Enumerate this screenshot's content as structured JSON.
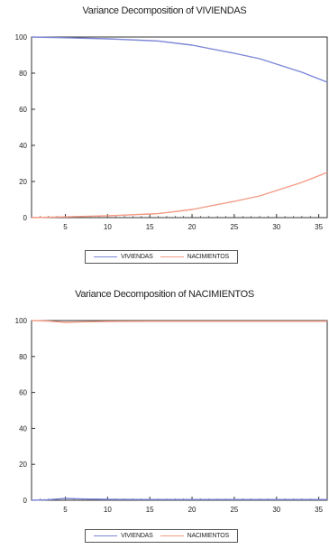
{
  "chart_data": [
    {
      "type": "line",
      "title": "Variance Decomposition of VIVIENDAS",
      "xlim": [
        1,
        36
      ],
      "ylim": [
        0,
        100
      ],
      "x_ticks": [
        5,
        10,
        15,
        20,
        25,
        30,
        35
      ],
      "y_ticks": [
        0,
        20,
        40,
        60,
        80,
        100
      ],
      "legend_position": "bottom",
      "series": [
        {
          "name": "VIVIENDAS",
          "color": "#7b86d6",
          "x": [
            1,
            5,
            10,
            15,
            16,
            20,
            25,
            28,
            30,
            33,
            36
          ],
          "values": [
            100,
            99.6,
            99,
            98,
            97.8,
            95.5,
            91,
            88,
            85,
            80.5,
            75
          ]
        },
        {
          "name": "NACIMIENTOS",
          "color": "#f39a84",
          "x": [
            1,
            5,
            10,
            15,
            16,
            20,
            25,
            28,
            30,
            33,
            36
          ],
          "values": [
            0,
            0.4,
            1,
            2,
            2.2,
            4.5,
            9,
            12,
            15,
            19.5,
            25
          ]
        }
      ]
    },
    {
      "type": "line",
      "title": "Variance Decomposition of NACIMIENTOS",
      "xlim": [
        1,
        36
      ],
      "ylim": [
        0,
        100
      ],
      "x_ticks": [
        5,
        10,
        15,
        20,
        25,
        30,
        35
      ],
      "y_ticks": [
        0,
        20,
        40,
        60,
        80,
        100
      ],
      "legend_position": "bottom",
      "series": [
        {
          "name": "VIVIENDAS",
          "color": "#7b86d6",
          "x": [
            1,
            3,
            5,
            7,
            10,
            15,
            20,
            25,
            30,
            36
          ],
          "values": [
            0,
            0.3,
            1,
            0.7,
            0.5,
            0.4,
            0.4,
            0.4,
            0.4,
            0.4
          ]
        },
        {
          "name": "NACIMIENTOS",
          "color": "#f39a84",
          "x": [
            1,
            3,
            5,
            7,
            10,
            15,
            20,
            25,
            30,
            36
          ],
          "values": [
            100,
            99.7,
            99,
            99.3,
            99.5,
            99.6,
            99.6,
            99.6,
            99.6,
            99.6
          ]
        }
      ]
    }
  ]
}
